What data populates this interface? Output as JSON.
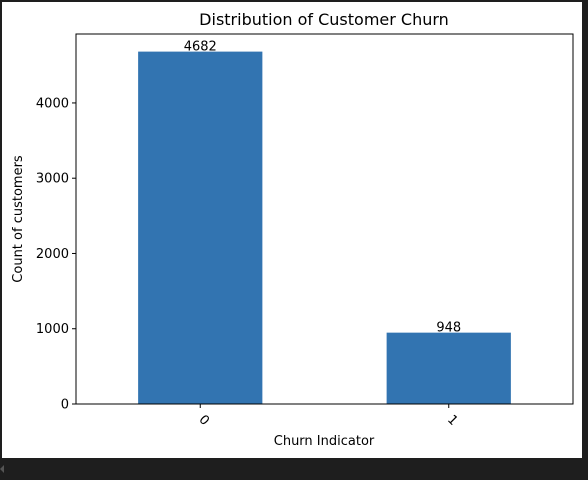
{
  "chart_data": {
    "type": "bar",
    "title": "Distribution of Customer Churn",
    "xlabel": "Churn Indicator",
    "ylabel": "Count of customers",
    "categories": [
      "0",
      "1"
    ],
    "values": [
      4682,
      948
    ],
    "data_labels": [
      "4682",
      "948"
    ],
    "ylim": [
      0,
      4916
    ],
    "yticks": [
      0,
      1000,
      2000,
      3000,
      4000
    ],
    "ytick_labels": [
      "0",
      "1000",
      "2000",
      "3000",
      "4000"
    ],
    "bar_color": "#3274b1",
    "grid": false,
    "legend": "none"
  },
  "ui": {
    "scroll_left_icon": "left-arrow-icon"
  }
}
